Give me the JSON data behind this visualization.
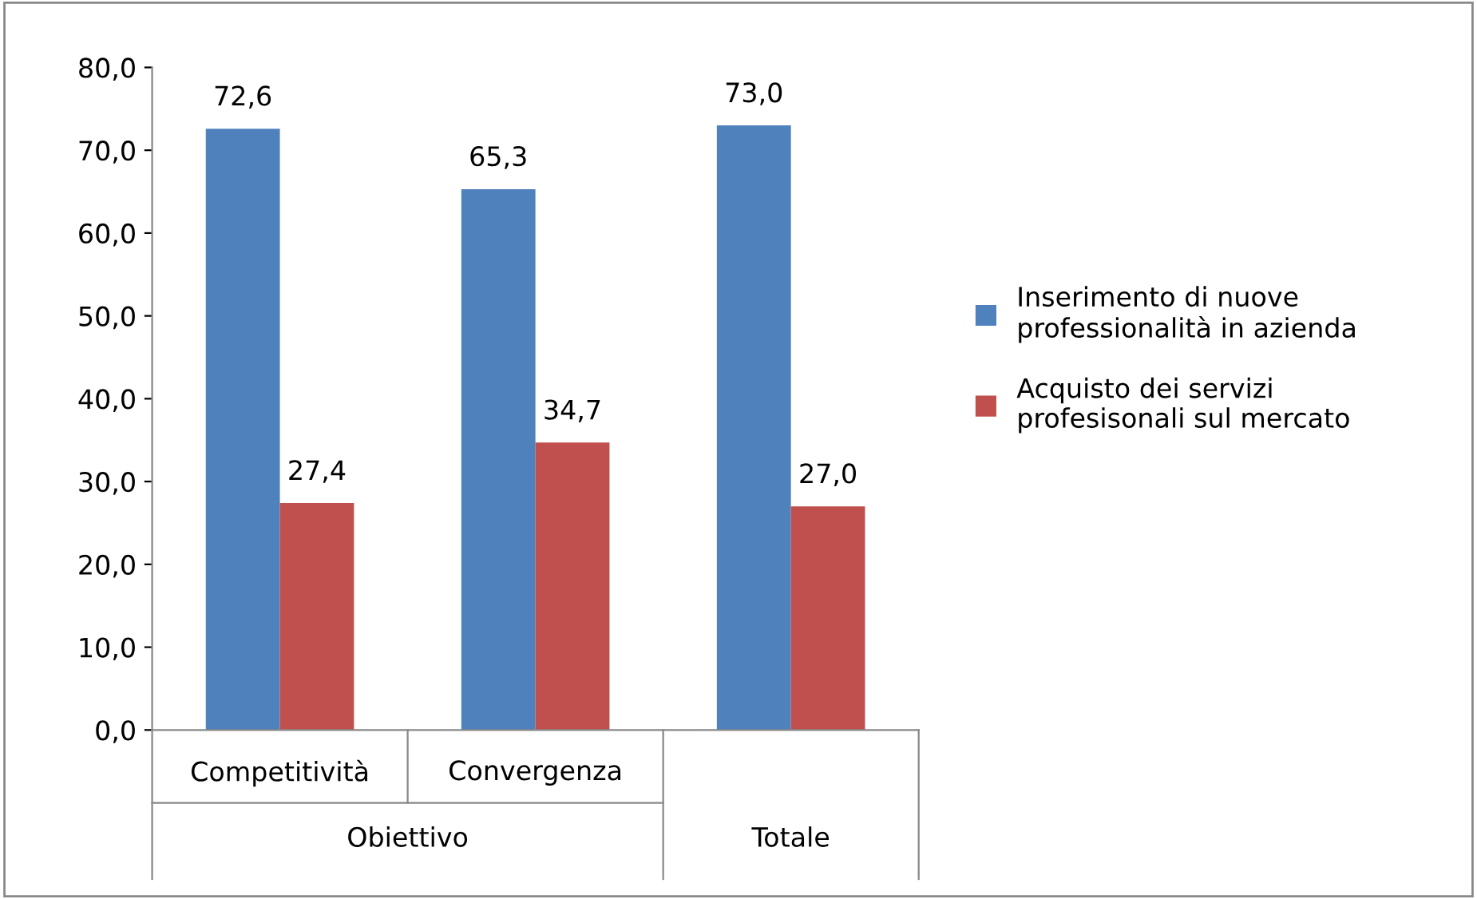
{
  "chart_data": {
    "type": "bar",
    "categories": [
      "Competitività",
      "Convergenza",
      null
    ],
    "series": [
      {
        "name": "Inserimento di nuove\nprofessionalità in azienda",
        "color": "#4f81bd",
        "values": [
          72.6,
          65.3,
          73.0
        ]
      },
      {
        "name": "Acquisto dei servizi\nprofesisonali sul mercato",
        "color": "#c0504d",
        "values": [
          27.4,
          34.7,
          27.0
        ]
      }
    ],
    "ylim": [
      0,
      80
    ],
    "yticks": [
      {
        "value": 0,
        "label": "0,0"
      },
      {
        "value": 10,
        "label": "10,0"
      },
      {
        "value": 20,
        "label": "20,0"
      },
      {
        "value": 30,
        "label": "30,0"
      },
      {
        "value": 40,
        "label": "40,0"
      },
      {
        "value": 50,
        "label": "50,0"
      },
      {
        "value": 60,
        "label": "60,0"
      },
      {
        "value": 70,
        "label": "70,0"
      },
      {
        "value": 80,
        "label": "80,0"
      }
    ],
    "value_labels": [
      [
        "72,6",
        "65,3",
        "73,0"
      ],
      [
        "27,4",
        "34,7",
        "27,0"
      ]
    ],
    "annotations": [
      "Obiettivo",
      "Totale"
    ],
    "legend": "right",
    "grid": false
  }
}
